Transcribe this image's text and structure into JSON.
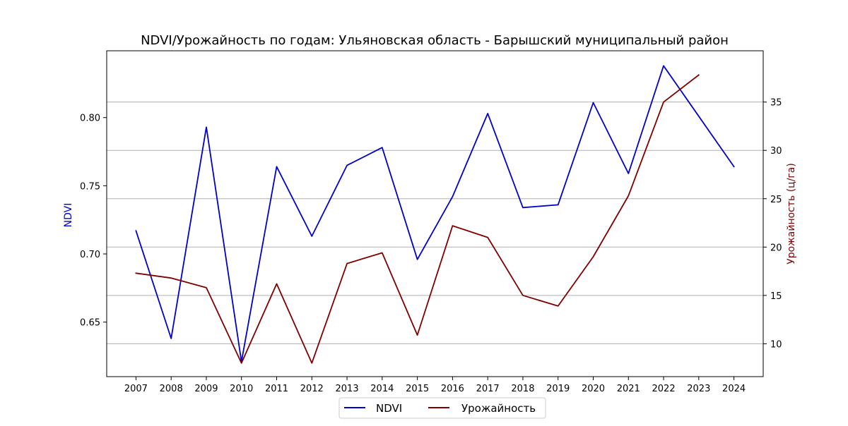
{
  "chart_data": {
    "type": "line",
    "title": "NDVI/Урожайность по годам: Ульяновская область - Барышский муниципальный район",
    "xlabel": "",
    "x": [
      2007,
      2008,
      2009,
      2010,
      2011,
      2012,
      2013,
      2014,
      2015,
      2016,
      2017,
      2018,
      2019,
      2020,
      2021,
      2022,
      2023,
      2024
    ],
    "x_tick_labels": [
      "2007",
      "2008",
      "2009",
      "2010",
      "2011",
      "2012",
      "2013",
      "2014",
      "2015",
      "2016",
      "2017",
      "2018",
      "2019",
      "2020",
      "2021",
      "2022",
      "2023",
      "2024"
    ],
    "grid": true,
    "legend_position": "bottom-center",
    "axes": {
      "left": {
        "label": "NDVI",
        "color": "#0000cc",
        "ylim": [
          0.61,
          0.849
        ],
        "ticks": [
          0.65,
          0.7,
          0.75,
          0.8
        ],
        "tick_labels": [
          "0.65",
          "0.70",
          "0.75",
          "0.80"
        ]
      },
      "right": {
        "label": "Урожайность (ц/га)",
        "color": "#800000",
        "ylim": [
          6.6,
          40.3
        ],
        "ticks": [
          10,
          15,
          20,
          25,
          30,
          35
        ],
        "tick_labels": [
          "10",
          "15",
          "20",
          "25",
          "30",
          "35"
        ]
      }
    },
    "series": [
      {
        "name": "NDVI",
        "axis": "left",
        "color": "#0000cc",
        "values": [
          0.717,
          0.638,
          0.793,
          0.621,
          0.764,
          0.713,
          0.765,
          0.778,
          0.696,
          0.742,
          0.803,
          0.734,
          0.736,
          0.811,
          0.759,
          0.838,
          0.801,
          0.764
        ]
      },
      {
        "name": "Урожайность",
        "axis": "right",
        "color": "#800000",
        "values": [
          17.3,
          16.8,
          15.8,
          8.0,
          16.2,
          8.0,
          18.3,
          19.4,
          10.9,
          22.2,
          21.0,
          15.0,
          13.9,
          19.0,
          25.3,
          35.0,
          37.8,
          null
        ]
      }
    ]
  }
}
